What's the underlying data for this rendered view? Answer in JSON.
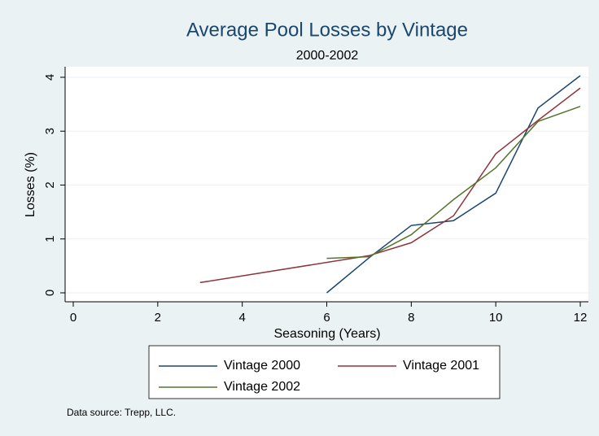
{
  "chart_data": {
    "type": "line",
    "title": "Average Pool Losses by Vintage",
    "subtitle": "2000-2002",
    "x_label": "Seasoning (Years)",
    "y_label": "Losses (%)",
    "note": "Data source: Trepp, LLC.",
    "xlim": [
      0,
      12
    ],
    "xticks": [
      0,
      2,
      4,
      6,
      8,
      10,
      12
    ],
    "ylim": [
      0,
      4
    ],
    "yticks": [
      0,
      1,
      2,
      3,
      4
    ],
    "grid": true,
    "series": [
      {
        "name": "Vintage 2000",
        "color": "#1a476f",
        "x": [
          6,
          7,
          8,
          9,
          10,
          11,
          12
        ],
        "values": [
          0.0,
          0.65,
          1.25,
          1.34,
          1.85,
          3.43,
          4.03
        ]
      },
      {
        "name": "Vintage 2001",
        "color": "#90353b",
        "x": [
          3,
          7,
          8,
          9,
          10,
          11,
          12
        ],
        "values": [
          0.19,
          0.69,
          0.93,
          1.43,
          2.58,
          3.2,
          3.8
        ]
      },
      {
        "name": "Vintage 2002",
        "color": "#55752f",
        "x": [
          6,
          7,
          8,
          9,
          10,
          11,
          12
        ],
        "values": [
          0.64,
          0.67,
          1.08,
          1.73,
          2.32,
          3.18,
          3.46
        ]
      }
    ]
  }
}
